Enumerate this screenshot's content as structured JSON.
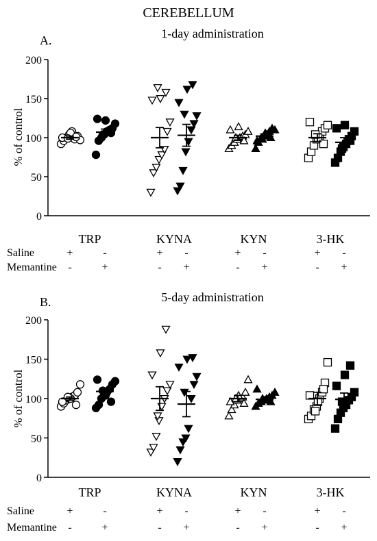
{
  "figure": {
    "title": "CEREBELLUM"
  },
  "chart_data": [
    {
      "type": "scatter",
      "panel_label": "A.",
      "title": "1-day administration",
      "ylabel": "% of control",
      "xlabel": "",
      "ylim": [
        0,
        200
      ],
      "yticks": [
        0,
        50,
        100,
        150,
        200
      ],
      "grid": false,
      "categories": [
        "TRP",
        "KYNA",
        "KYN",
        "3-HK"
      ],
      "treatment_rows": [
        {
          "label": "Saline",
          "signs": [
            "+",
            "-",
            "+",
            "-",
            "+",
            "-",
            "+",
            "-"
          ]
        },
        {
          "label": "Memantine",
          "signs": [
            "-",
            "+",
            "-",
            "+",
            "-",
            "+",
            "-",
            "+"
          ]
        }
      ],
      "series": [
        {
          "category": "TRP",
          "group": "Saline",
          "marker": "circle-open",
          "values": [
            92,
            96,
            100,
            104,
            108,
            98,
            102,
            97,
            100,
            106,
            101,
            99
          ],
          "mean": 100,
          "sem": 2
        },
        {
          "category": "TRP",
          "group": "Memantine",
          "marker": "circle-filled",
          "values": [
            78,
            96,
            100,
            104,
            108,
            110,
            112,
            118,
            124,
            122,
            106,
            104
          ],
          "mean": 107,
          "sem": 4
        },
        {
          "category": "KYNA",
          "group": "Saline",
          "marker": "triangle-down-open",
          "values": [
            30,
            55,
            62,
            72,
            78,
            85,
            108,
            120,
            148,
            150,
            158,
            164
          ],
          "mean": 100,
          "sem": 13
        },
        {
          "category": "KYNA",
          "group": "Memantine",
          "marker": "triangle-down-filled",
          "values": [
            32,
            38,
            58,
            82,
            95,
            110,
            118,
            128,
            145,
            162,
            168,
            130
          ],
          "mean": 103,
          "sem": 14
        },
        {
          "category": "KYN",
          "group": "Saline",
          "marker": "triangle-up-open",
          "values": [
            86,
            90,
            94,
            98,
            100,
            102,
            104,
            108,
            110,
            114,
            96,
            100
          ],
          "mean": 100,
          "sem": 3
        },
        {
          "category": "KYN",
          "group": "Memantine",
          "marker": "triangle-up-filled",
          "values": [
            86,
            94,
            100,
            102,
            104,
            108,
            112,
            110,
            96,
            106,
            100,
            98
          ],
          "mean": 102,
          "sem": 3
        },
        {
          "category": "3-HK",
          "group": "Saline",
          "marker": "square-open",
          "values": [
            74,
            82,
            90,
            98,
            102,
            108,
            112,
            116,
            120,
            100,
            92,
            104
          ],
          "mean": 100,
          "sem": 5
        },
        {
          "category": "3-HK",
          "group": "Memantine",
          "marker": "square-filled",
          "values": [
            68,
            74,
            82,
            88,
            92,
            98,
            102,
            108,
            112,
            116,
            96,
            86
          ],
          "mean": 94,
          "sem": 6
        }
      ]
    },
    {
      "type": "scatter",
      "panel_label": "B.",
      "title": "5-day administration",
      "ylabel": "% of control",
      "xlabel": "",
      "ylim": [
        0,
        200
      ],
      "yticks": [
        0,
        50,
        100,
        150,
        200
      ],
      "grid": false,
      "categories": [
        "TRP",
        "KYNA",
        "KYN",
        "3-HK"
      ],
      "treatment_rows": [
        {
          "label": "Saline",
          "signs": [
            "+",
            "-",
            "+",
            "-",
            "+",
            "-",
            "+",
            "-"
          ]
        },
        {
          "label": "Memantine",
          "signs": [
            "-",
            "+",
            "-",
            "+",
            "-",
            "+",
            "-",
            "+"
          ]
        }
      ],
      "series": [
        {
          "category": "TRP",
          "group": "Saline",
          "marker": "circle-open",
          "values": [
            90,
            94,
            98,
            100,
            102,
            104,
            108,
            118,
            96,
            100,
            92,
            102
          ],
          "mean": 100,
          "sem": 2
        },
        {
          "category": "TRP",
          "group": "Memantine",
          "marker": "circle-filled",
          "values": [
            88,
            92,
            100,
            104,
            108,
            112,
            118,
            122,
            124,
            104,
            96,
            110
          ],
          "mean": 109,
          "sem": 4
        },
        {
          "category": "KYNA",
          "group": "Saline",
          "marker": "triangle-down-open",
          "values": [
            32,
            38,
            52,
            72,
            90,
            100,
            110,
            118,
            130,
            158,
            188,
            78
          ],
          "mean": 100,
          "sem": 15
        },
        {
          "category": "KYNA",
          "group": "Memantine",
          "marker": "triangle-down-filled",
          "values": [
            20,
            35,
            45,
            50,
            62,
            100,
            118,
            128,
            140,
            150,
            152,
            108
          ],
          "mean": 93,
          "sem": 16
        },
        {
          "category": "KYN",
          "group": "Saline",
          "marker": "triangle-up-open",
          "values": [
            78,
            86,
            92,
            98,
            100,
            102,
            108,
            124,
            96,
            104,
            94,
            100
          ],
          "mean": 100,
          "sem": 4
        },
        {
          "category": "KYN",
          "group": "Memantine",
          "marker": "triangle-up-filled",
          "values": [
            90,
            94,
            96,
            98,
            100,
            102,
            104,
            108,
            112,
            98,
            96,
            100
          ],
          "mean": 99,
          "sem": 2
        },
        {
          "category": "3-HK",
          "group": "Saline",
          "marker": "square-open",
          "values": [
            74,
            78,
            86,
            90,
            100,
            108,
            120,
            146,
            104,
            96,
            112,
            84
          ],
          "mean": 100,
          "sem": 8
        },
        {
          "category": "3-HK",
          "group": "Memantine",
          "marker": "square-filled",
          "values": [
            62,
            74,
            82,
            88,
            92,
            98,
            102,
            108,
            116,
            130,
            142,
            96
          ],
          "mean": 99,
          "sem": 8
        }
      ]
    }
  ]
}
